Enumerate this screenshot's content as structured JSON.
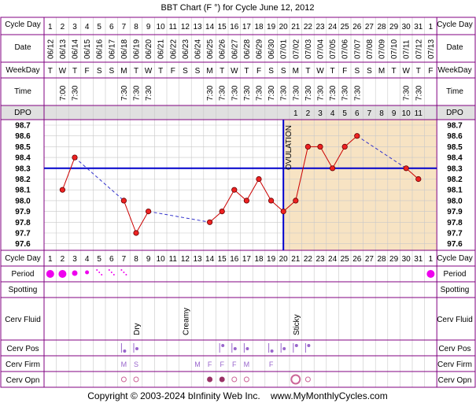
{
  "title": "BBT Chart (F °) for Cycle June 12, 2012",
  "copyright": "Copyright © 2003-2024 bInfinity Web Inc.    www.MyMonthlyCycles.com",
  "row_labels": {
    "cycle_day": "Cycle Day",
    "date": "Date",
    "weekday": "WeekDay",
    "time": "Time",
    "dpo": "DPO",
    "period": "Period",
    "spotting": "Spotting",
    "cerv_fluid": "Cerv Fluid",
    "cerv_pos": "Cerv Pos",
    "cerv_firm": "Cerv Firm",
    "cerv_opn": "Cerv Opn"
  },
  "ovulation_label": "OVULATION",
  "colors": {
    "frame": "#800080",
    "grid": "#c8c8c8",
    "luteal_bg": "#f7e3c3",
    "coverline": "#0000cc",
    "temp_line": "#cc0000",
    "dashed_line": "#3333cc",
    "dot_fill": "#ee2222",
    "period": "#ee00ee",
    "dpo_header_bg": "#e0e0e0"
  },
  "chart_data": {
    "type": "line",
    "title": "BBT Chart (F °) for Cycle June 12, 2012",
    "cycle_days": [
      "1",
      "2",
      "3",
      "4",
      "5",
      "6",
      "7",
      "8",
      "9",
      "10",
      "11",
      "12",
      "13",
      "14",
      "15",
      "16",
      "17",
      "18",
      "19",
      "20",
      "21",
      "22",
      "23",
      "24",
      "25",
      "26",
      "27",
      "28",
      "29",
      "30",
      "31",
      "1"
    ],
    "dates": [
      "06/12",
      "06/13",
      "06/14",
      "06/15",
      "06/16",
      "06/17",
      "06/18",
      "06/19",
      "06/20",
      "06/21",
      "06/22",
      "06/23",
      "06/24",
      "06/25",
      "06/26",
      "06/27",
      "06/28",
      "06/29",
      "06/30",
      "07/01",
      "07/02",
      "07/03",
      "07/04",
      "07/05",
      "07/06",
      "07/07",
      "07/08",
      "07/09",
      "07/10",
      "07/11",
      "07/12",
      "07/13"
    ],
    "weekdays": [
      "T",
      "W",
      "T",
      "F",
      "S",
      "S",
      "M",
      "T",
      "W",
      "T",
      "F",
      "S",
      "S",
      "M",
      "T",
      "W",
      "T",
      "F",
      "S",
      "S",
      "M",
      "T",
      "W",
      "T",
      "F",
      "S",
      "S",
      "M",
      "T",
      "W",
      "T",
      "F"
    ],
    "times": [
      "",
      "7:00",
      "7:30",
      "",
      "",
      "",
      "7:30",
      "7:30",
      "7:30",
      "",
      "",
      "",
      "",
      "7:30",
      "7:30",
      "7:30",
      "7:30",
      "7:30",
      "7:30",
      "7:30",
      "7:30",
      "7:30",
      "7:30",
      "7:30",
      "7:30",
      "7:30",
      "",
      "",
      "",
      "7:30",
      "7:30",
      ""
    ],
    "dpo": [
      "",
      "",
      "",
      "",
      "",
      "",
      "",
      "",
      "",
      "",
      "",
      "",
      "",
      "",
      "",
      "",
      "",
      "",
      "",
      "",
      "1",
      "2",
      "3",
      "4",
      "5",
      "6",
      "7",
      "8",
      "9",
      "10",
      "11",
      ""
    ],
    "temps": [
      null,
      98.1,
      98.4,
      null,
      null,
      null,
      98.0,
      97.7,
      97.9,
      null,
      null,
      null,
      null,
      97.8,
      97.9,
      98.1,
      98.0,
      98.2,
      98.0,
      97.9,
      98.0,
      98.5,
      98.5,
      98.3,
      98.5,
      98.6,
      null,
      null,
      null,
      98.3,
      98.2,
      null
    ],
    "y_ticks": [
      "98.7",
      "98.6",
      "98.5",
      "98.4",
      "98.3",
      "98.2",
      "98.1",
      "98.0",
      "97.9",
      "97.8",
      "97.7",
      "97.6"
    ],
    "ylim": [
      97.6,
      98.7
    ],
    "coverline": 98.3,
    "ovulation_day": 20,
    "period": [
      "heavy",
      "heavy",
      "medium",
      "light",
      "spot",
      "spot",
      "spot",
      "",
      "",
      "",
      "",
      "",
      "",
      "",
      "",
      "",
      "",
      "",
      "",
      "",
      "",
      "",
      "",
      "",
      "",
      "",
      "",
      "",
      "",
      "",
      "",
      "heavy"
    ],
    "cerv_fluid": [
      "",
      "",
      "",
      "",
      "",
      "",
      "",
      "Dry",
      "",
      "",
      "",
      "Creamy",
      "",
      "",
      "",
      "",
      "",
      "",
      "",
      "",
      "Sticky",
      "",
      "",
      "",
      "",
      "",
      "",
      "",
      "",
      "",
      "",
      ""
    ],
    "cerv_pos": [
      "",
      "",
      "",
      "",
      "",
      "",
      "low",
      "mid",
      "",
      "",
      "",
      "",
      "",
      "",
      "high",
      "mid",
      "mid",
      "",
      "low",
      "mid",
      "high",
      "high",
      "",
      "",
      "",
      "",
      "",
      "",
      "",
      "",
      "",
      ""
    ],
    "cerv_firm": [
      "",
      "",
      "",
      "",
      "",
      "",
      "M",
      "S",
      "",
      "",
      "",
      "",
      "M",
      "F",
      "F",
      "F",
      "M",
      "",
      "F",
      "",
      "",
      "",
      "",
      "",
      "",
      "",
      "",
      "",
      "",
      "",
      "",
      ""
    ],
    "cerv_opn": [
      "",
      "",
      "",
      "",
      "",
      "",
      "small",
      "small",
      "",
      "",
      "",
      "",
      "",
      "medium",
      "medium",
      "small",
      "small",
      "",
      "",
      "",
      "large",
      "small",
      "",
      "",
      "",
      "",
      "",
      "",
      "",
      "",
      "",
      ""
    ]
  }
}
